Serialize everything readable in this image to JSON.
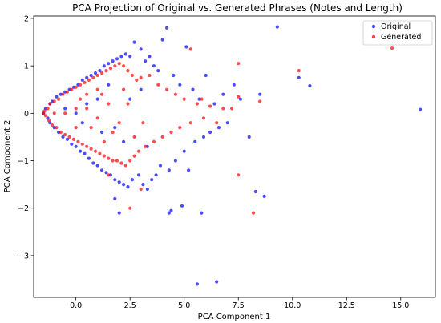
{
  "chart_data": {
    "type": "scatter",
    "title": "PCA Projection of Original vs. Generated Phrases (Notes and Length)",
    "xlabel": "PCA Component 1",
    "ylabel": "PCA Component 2",
    "xlim": [
      -1.95,
      16.6
    ],
    "ylim": [
      -3.88,
      2.05
    ],
    "xticks": [
      0.0,
      2.5,
      5.0,
      7.5,
      10.0,
      12.5,
      15.0
    ],
    "xtick_labels": [
      "0.0",
      "2.5",
      "5.0",
      "7.5",
      "10.0",
      "12.5",
      "15.0"
    ],
    "yticks": [
      -3,
      -2,
      -1,
      0,
      1,
      2
    ],
    "ytick_labels": [
      "−3",
      "−2",
      "−1",
      "0",
      "1",
      "2"
    ],
    "grid": false,
    "legend_position": "top-right",
    "colors": {
      "Original": "#0000ff",
      "Generated": "#ff0000"
    },
    "series": [
      {
        "name": "Original",
        "color": "#0000ff",
        "points": [
          [
            -1.5,
            0.0
          ],
          [
            -1.4,
            0.1
          ],
          [
            -1.3,
            -0.1
          ],
          [
            -1.2,
            0.2
          ],
          [
            -1.2,
            -0.2
          ],
          [
            -1.1,
            0.25
          ],
          [
            -1.0,
            -0.3
          ],
          [
            -0.9,
            0.35
          ],
          [
            -0.8,
            -0.4
          ],
          [
            -0.7,
            0.4
          ],
          [
            -0.6,
            -0.5
          ],
          [
            -0.5,
            0.45
          ],
          [
            -0.4,
            -0.55
          ],
          [
            -0.3,
            0.5
          ],
          [
            -0.2,
            -0.65
          ],
          [
            -0.1,
            0.55
          ],
          [
            0.0,
            -0.7
          ],
          [
            0.1,
            0.6
          ],
          [
            0.2,
            -0.8
          ],
          [
            0.3,
            0.7
          ],
          [
            0.4,
            -0.85
          ],
          [
            0.5,
            0.75
          ],
          [
            0.6,
            -0.95
          ],
          [
            0.7,
            0.8
          ],
          [
            0.8,
            -1.05
          ],
          [
            0.9,
            0.85
          ],
          [
            1.0,
            -1.1
          ],
          [
            1.1,
            0.9
          ],
          [
            1.2,
            -1.2
          ],
          [
            1.3,
            1.0
          ],
          [
            1.4,
            -1.25
          ],
          [
            1.5,
            1.05
          ],
          [
            1.6,
            -1.3
          ],
          [
            1.7,
            1.1
          ],
          [
            1.8,
            -1.4
          ],
          [
            1.9,
            1.15
          ],
          [
            2.0,
            -1.45
          ],
          [
            2.1,
            1.2
          ],
          [
            2.2,
            -1.5
          ],
          [
            2.3,
            1.25
          ],
          [
            2.4,
            -1.55
          ],
          [
            2.5,
            1.2
          ],
          [
            2.6,
            -1.4
          ],
          [
            2.7,
            1.5
          ],
          [
            2.9,
            -1.3
          ],
          [
            3.0,
            1.35
          ],
          [
            3.1,
            -1.5
          ],
          [
            3.2,
            1.1
          ],
          [
            3.3,
            -1.6
          ],
          [
            3.4,
            1.2
          ],
          [
            3.5,
            -1.4
          ],
          [
            3.6,
            1.0
          ],
          [
            3.7,
            -1.3
          ],
          [
            3.8,
            0.9
          ],
          [
            3.9,
            -1.1
          ],
          [
            4.0,
            1.55
          ],
          [
            4.2,
            1.8
          ],
          [
            4.3,
            -1.2
          ],
          [
            4.5,
            0.8
          ],
          [
            4.6,
            -1.0
          ],
          [
            4.8,
            0.6
          ],
          [
            5.0,
            -0.8
          ],
          [
            5.1,
            1.4
          ],
          [
            5.2,
            -1.2
          ],
          [
            5.4,
            0.5
          ],
          [
            5.5,
            -0.6
          ],
          [
            5.7,
            0.3
          ],
          [
            5.9,
            -0.5
          ],
          [
            6.0,
            0.8
          ],
          [
            6.2,
            -0.4
          ],
          [
            6.4,
            0.2
          ],
          [
            6.6,
            -0.3
          ],
          [
            6.8,
            0.4
          ],
          [
            7.0,
            -0.2
          ],
          [
            7.3,
            0.6
          ],
          [
            7.6,
            0.3
          ],
          [
            8.0,
            -0.5
          ],
          [
            8.3,
            -1.65
          ],
          [
            8.5,
            0.4
          ],
          [
            8.7,
            -1.75
          ],
          [
            9.3,
            1.82
          ],
          [
            10.3,
            0.75
          ],
          [
            10.8,
            0.58
          ],
          [
            15.9,
            0.08
          ],
          [
            4.4,
            -2.05
          ],
          [
            4.9,
            -1.95
          ],
          [
            5.8,
            -2.1
          ],
          [
            1.8,
            -1.8
          ],
          [
            2.0,
            -2.1
          ],
          [
            4.3,
            -2.1
          ],
          [
            5.6,
            -3.6
          ],
          [
            6.5,
            -3.55
          ],
          [
            0.5,
            0.2
          ],
          [
            0.3,
            -0.2
          ],
          [
            1.0,
            0.3
          ],
          [
            1.2,
            -0.4
          ],
          [
            -0.5,
            0.1
          ],
          [
            0.0,
            0.0
          ],
          [
            2.5,
            0.3
          ],
          [
            2.2,
            -0.6
          ],
          [
            3.0,
            0.5
          ],
          [
            3.3,
            -0.7
          ],
          [
            1.5,
            0.6
          ],
          [
            1.8,
            -0.3
          ]
        ]
      },
      {
        "name": "Generated",
        "color": "#ff0000",
        "points": [
          [
            -1.5,
            0.0
          ],
          [
            -1.45,
            0.05
          ],
          [
            -1.4,
            -0.05
          ],
          [
            -1.3,
            0.1
          ],
          [
            -1.25,
            -0.15
          ],
          [
            -1.2,
            0.2
          ],
          [
            -1.1,
            -0.25
          ],
          [
            -1.0,
            0.25
          ],
          [
            -0.9,
            -0.3
          ],
          [
            -0.8,
            0.3
          ],
          [
            -0.7,
            -0.4
          ],
          [
            -0.6,
            0.4
          ],
          [
            -0.5,
            -0.45
          ],
          [
            -0.4,
            0.45
          ],
          [
            -0.3,
            -0.5
          ],
          [
            -0.2,
            0.5
          ],
          [
            -0.1,
            -0.55
          ],
          [
            0.0,
            0.55
          ],
          [
            0.1,
            -0.6
          ],
          [
            0.2,
            0.6
          ],
          [
            0.3,
            -0.65
          ],
          [
            0.4,
            0.65
          ],
          [
            0.5,
            -0.7
          ],
          [
            0.6,
            0.7
          ],
          [
            0.7,
            -0.75
          ],
          [
            0.8,
            0.75
          ],
          [
            0.9,
            -0.8
          ],
          [
            1.0,
            0.8
          ],
          [
            1.1,
            -0.85
          ],
          [
            1.2,
            0.85
          ],
          [
            1.3,
            -0.9
          ],
          [
            1.4,
            0.9
          ],
          [
            1.5,
            -0.95
          ],
          [
            1.6,
            0.95
          ],
          [
            1.7,
            -1.0
          ],
          [
            1.8,
            1.0
          ],
          [
            1.9,
            -1.0
          ],
          [
            2.0,
            1.05
          ],
          [
            2.1,
            -1.05
          ],
          [
            2.2,
            1.0
          ],
          [
            2.3,
            -1.1
          ],
          [
            2.4,
            0.9
          ],
          [
            2.5,
            -1.0
          ],
          [
            2.6,
            0.8
          ],
          [
            2.7,
            -0.9
          ],
          [
            2.8,
            0.7
          ],
          [
            2.9,
            -0.8
          ],
          [
            3.0,
            0.75
          ],
          [
            3.2,
            -0.7
          ],
          [
            3.4,
            0.8
          ],
          [
            3.6,
            -0.6
          ],
          [
            3.8,
            0.6
          ],
          [
            4.0,
            -0.5
          ],
          [
            4.2,
            0.5
          ],
          [
            4.4,
            -0.4
          ],
          [
            4.6,
            0.4
          ],
          [
            4.8,
            -0.3
          ],
          [
            5.0,
            0.3
          ],
          [
            5.3,
            -0.2
          ],
          [
            5.6,
            0.2
          ],
          [
            5.9,
            -0.1
          ],
          [
            6.2,
            0.15
          ],
          [
            6.5,
            -0.2
          ],
          [
            6.8,
            0.1
          ],
          [
            7.2,
            0.1
          ],
          [
            7.5,
            0.35
          ],
          [
            7.5,
            -1.3
          ],
          [
            8.5,
            0.25
          ],
          [
            10.3,
            0.9
          ],
          [
            14.6,
            1.37
          ],
          [
            5.3,
            1.35
          ],
          [
            5.8,
            0.3
          ],
          [
            7.5,
            1.05
          ],
          [
            8.2,
            -2.1
          ],
          [
            3.0,
            -1.6
          ],
          [
            2.5,
            -2.0
          ],
          [
            1.5,
            -1.3
          ],
          [
            0.0,
            0.1
          ],
          [
            0.5,
            0.1
          ],
          [
            1.0,
            -0.1
          ],
          [
            1.5,
            0.2
          ],
          [
            2.0,
            -0.2
          ],
          [
            0.2,
            0.3
          ],
          [
            0.7,
            -0.3
          ],
          [
            1.2,
            0.4
          ],
          [
            1.7,
            -0.4
          ],
          [
            2.2,
            0.5
          ],
          [
            2.7,
            -0.5
          ],
          [
            -1.0,
            0.0
          ],
          [
            -0.5,
            0.0
          ],
          [
            0.0,
            -0.3
          ],
          [
            0.5,
            0.4
          ],
          [
            1.0,
            0.5
          ],
          [
            1.3,
            -0.6
          ],
          [
            2.4,
            0.2
          ],
          [
            3.1,
            -0.2
          ]
        ]
      }
    ]
  }
}
